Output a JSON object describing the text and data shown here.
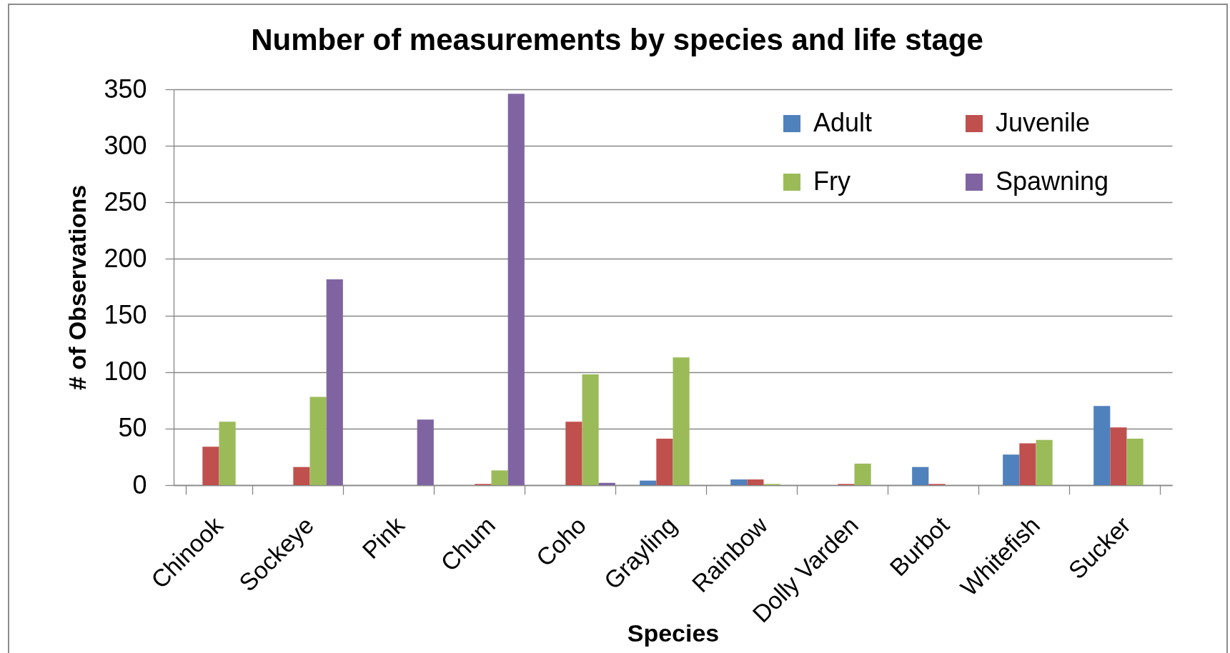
{
  "chart_data": {
    "type": "bar",
    "title": "Number of measurements by species and life stage",
    "xlabel": "Species",
    "ylabel": "# of Observations",
    "categories": [
      "Chinook",
      "Sockeye",
      "Pink",
      "Chum",
      "Coho",
      "Grayling",
      "Rainbow",
      "Dolly Varden",
      "Burbot",
      "Whitefish",
      "Sucker"
    ],
    "series": [
      {
        "name": "Adult",
        "color": "#4f81bd",
        "values": [
          null,
          null,
          null,
          null,
          null,
          4,
          5,
          null,
          16,
          27,
          70
        ]
      },
      {
        "name": "Juvenile",
        "color": "#c0504d",
        "values": [
          34,
          16,
          null,
          1,
          56,
          41,
          5,
          1,
          1,
          37,
          51
        ]
      },
      {
        "name": "Fry",
        "color": "#9bbb59",
        "values": [
          56,
          78,
          null,
          13,
          98,
          113,
          1,
          19,
          null,
          40,
          41
        ]
      },
      {
        "name": "Spawning",
        "color": "#8064a2",
        "values": [
          null,
          182,
          58,
          346,
          2,
          null,
          null,
          null,
          null,
          null,
          null
        ]
      }
    ],
    "ylim": [
      0,
      350
    ],
    "yticks": [
      0,
      50,
      100,
      150,
      200,
      250,
      300,
      350
    ],
    "grid": "y",
    "legend": "top right"
  }
}
